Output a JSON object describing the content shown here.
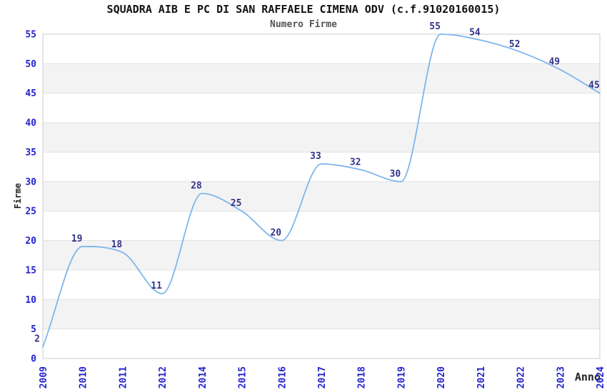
{
  "page": {
    "background": "#ffffff"
  },
  "chart_data": {
    "type": "line",
    "title": "SQUADRA AIB E PC DI SAN RAFFAELE CIMENA ODV (c.f.91020160015)",
    "subtitle": "Numero Firme",
    "xlabel": "Anno",
    "ylabel": "Firme",
    "categories": [
      "2009",
      "2010",
      "2011",
      "2012",
      "2014",
      "2015",
      "2016",
      "2017",
      "2018",
      "2019",
      "2020",
      "2021",
      "2022",
      "2023",
      "2024"
    ],
    "values": [
      2,
      19,
      18,
      11,
      28,
      25,
      20,
      33,
      32,
      30,
      55,
      54,
      52,
      49,
      45
    ],
    "ylim": [
      0,
      55
    ],
    "ytick_step": 5,
    "yticks": [
      0,
      5,
      10,
      15,
      20,
      25,
      30,
      35,
      40,
      45,
      50,
      55
    ],
    "grid": "horizontal gridlines with alternating shaded bands",
    "legend_position": "none",
    "line_style": "smooth monotone curve, no point markers, value labels above-left of each point",
    "colors": {
      "line": "#7eb6ec",
      "tick_labels": "#2222cc",
      "data_labels": "#333388",
      "band_fill": "#f3f3f3",
      "gridline": "#e2e2e2",
      "plot_border": "#cccccc",
      "title": "#111111",
      "subtitle": "#555555",
      "axis_titles": "#222222"
    }
  }
}
